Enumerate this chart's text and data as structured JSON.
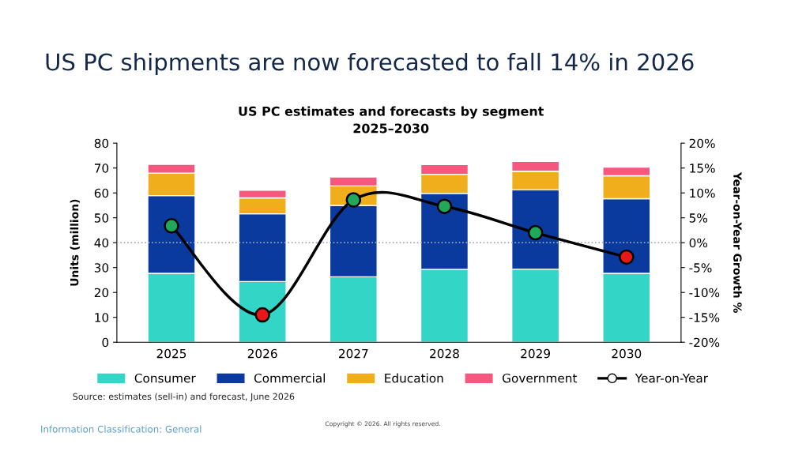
{
  "chart_data": {
    "type": "bar",
    "stacked": true,
    "title": "US PC shipments are now forecasted to fall 14% in 2026",
    "subtitle": "US PC estimates and forecasts by segment\n2025–2030",
    "ylabel": "Units (million)",
    "y2label": "Year-on-Year Growth %",
    "categories": [
      "2025",
      "2026",
      "2027",
      "2028",
      "2029",
      "2030"
    ],
    "series": [
      {
        "name": "Consumer",
        "color": "#33d6c6",
        "values": [
          27.7,
          24.4,
          26.3,
          29.3,
          29.4,
          27.7
        ]
      },
      {
        "name": "Commercial",
        "color": "#0a3a9e",
        "values": [
          31.2,
          27.2,
          28.7,
          30.5,
          31.8,
          30.0
        ]
      },
      {
        "name": "Education",
        "color": "#f0ae1c",
        "values": [
          9.0,
          6.4,
          7.8,
          7.7,
          7.5,
          9.2
        ]
      },
      {
        "name": "Government",
        "color": "#f4587e",
        "values": [
          3.6,
          3.1,
          3.6,
          3.9,
          4.0,
          3.5
        ]
      },
      {
        "name": "Year-on-Year",
        "type": "line",
        "axis": "y2",
        "color": "#000000",
        "marker": "circle",
        "colors": [
          "#22a85a",
          "#e81818",
          "#22a85a",
          "#22a85a",
          "#22a85a",
          "#e81818"
        ],
        "values": [
          3.4,
          -14.5,
          8.6,
          7.3,
          2.0,
          -2.9
        ]
      }
    ],
    "ylim": [
      0,
      80
    ],
    "yticks": [
      0,
      10,
      20,
      30,
      40,
      50,
      60,
      70,
      80
    ],
    "y2lim": [
      -20,
      20
    ],
    "y2ticks": [
      {
        "value": -20,
        "label": "-20%"
      },
      {
        "value": -15,
        "label": "-15%"
      },
      {
        "value": -10,
        "label": "-10%"
      },
      {
        "value": -5,
        "label": "-5%"
      },
      {
        "value": 0,
        "label": "0%"
      },
      {
        "value": 5,
        "label": "5%"
      },
      {
        "value": 10,
        "label": "10%"
      },
      {
        "value": 15,
        "label": "15%"
      },
      {
        "value": 20,
        "label": "20%"
      }
    ],
    "ref_lines": [
      {
        "axis": "y2",
        "value": 0,
        "color": "#a0a8b8",
        "line_style": "dotted"
      }
    ],
    "grid": false,
    "legend": "bottom",
    "annotations": [
      "Source: estimates (sell-in) and forecast, June 2026",
      "Information Classification: General",
      "Copyright © 2026. All rights reserved."
    ]
  }
}
